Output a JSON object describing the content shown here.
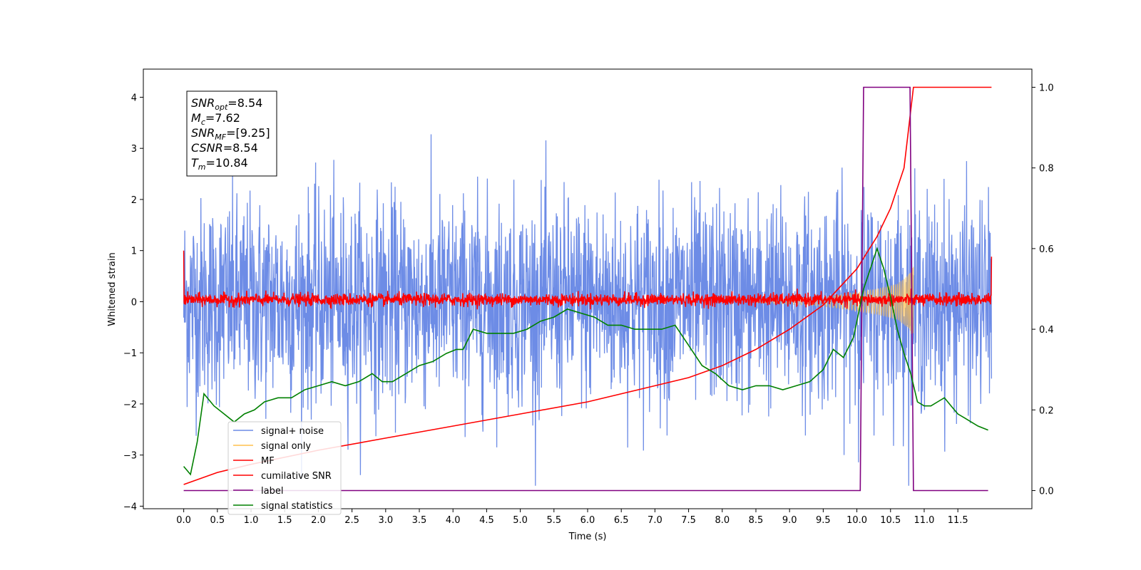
{
  "chart_data": {
    "type": "line",
    "xlabel": "Time (s)",
    "ylabel": "Whitened strain",
    "xlim": [
      -0.6,
      12.6
    ],
    "ylim": [
      -4.05,
      4.55
    ],
    "y2lim": [
      -0.045,
      1.045
    ],
    "grid": false,
    "legend_position": "lower-left",
    "x_ticks": [
      0.0,
      0.5,
      1.0,
      1.5,
      2.0,
      2.5,
      3.0,
      3.5,
      4.0,
      4.5,
      5.0,
      5.5,
      6.0,
      6.5,
      7.0,
      7.5,
      8.0,
      8.5,
      9.0,
      9.5,
      10.0,
      10.5,
      11.0,
      11.5
    ],
    "x_tick_labels": [
      "0.0",
      "0.5",
      "1.0",
      "1.5",
      "2.0",
      "2.5",
      "3.0",
      "3.5",
      "4.0",
      "4.5",
      "5.0",
      "5.5",
      "6.0",
      "6.5",
      "7.0",
      "7.5",
      "8.0",
      "8.5",
      "9.0",
      "9.5",
      "10.0",
      "10.5",
      "11.0",
      "11.5"
    ],
    "y_ticks": [
      -4,
      -3,
      -2,
      -1,
      0,
      1,
      2,
      3,
      4
    ],
    "y_tick_labels": [
      "−4",
      "−3",
      "−2",
      "−1",
      "0",
      "1",
      "2",
      "3",
      "4"
    ],
    "y2_ticks": [
      0.0,
      0.2,
      0.4,
      0.6,
      0.8,
      1.0
    ],
    "y2_tick_labels": [
      "0.0",
      "0.2",
      "0.4",
      "0.6",
      "0.8",
      "1.0"
    ],
    "annotation": [
      {
        "base": "SNR",
        "sub": "opt",
        "value": "=8.54"
      },
      {
        "base": "M",
        "sub": "c",
        "value": "=7.62"
      },
      {
        "base": "SNR",
        "sub": "MF",
        "value": "=[9.25]"
      },
      {
        "base": "CSNR",
        "sub": "",
        "value": "=8.54"
      },
      {
        "base": "T",
        "sub": "m",
        "value": "=10.84"
      }
    ],
    "colors": {
      "signal_noise": "#6d8ce6",
      "signal_only": "#ffc04d",
      "mf": "#ff0000",
      "cumulative_snr": "#ff0000",
      "label": "#800080",
      "signal_statistics": "#008000"
    },
    "series": [
      {
        "name": "signal+ noise",
        "axis": "left",
        "kind": "noise",
        "x_range": [
          0.0,
          12.0
        ],
        "y_min": -3.6,
        "y_max": 4.15,
        "typical_amplitude": 1.0
      },
      {
        "name": "signal only",
        "axis": "left",
        "kind": "chirp",
        "x": [
          8.5,
          9.0,
          9.5,
          10.0,
          10.3,
          10.6,
          10.75,
          10.84
        ],
        "envelope": [
          0.02,
          0.05,
          0.09,
          0.18,
          0.25,
          0.35,
          0.5,
          0.7
        ]
      },
      {
        "name": "MF",
        "axis": "left",
        "kind": "noise",
        "x_range": [
          0.0,
          12.0
        ],
        "y_min": -0.15,
        "y_max": 0.33,
        "edge_values": [
          1.0,
          0.88
        ]
      },
      {
        "name": "cumilative SNR",
        "axis": "right",
        "x": [
          0.0,
          0.5,
          1.0,
          2.0,
          3.0,
          4.0,
          5.0,
          6.0,
          7.0,
          7.5,
          8.0,
          8.5,
          9.0,
          9.5,
          10.0,
          10.3,
          10.5,
          10.7,
          10.84,
          11.0,
          11.5,
          12.0
        ],
        "values": [
          0.015,
          0.045,
          0.065,
          0.1,
          0.13,
          0.16,
          0.19,
          0.22,
          0.26,
          0.28,
          0.31,
          0.35,
          0.4,
          0.46,
          0.55,
          0.63,
          0.7,
          0.8,
          1.0,
          1.0,
          1.0,
          1.0
        ]
      },
      {
        "name": "label",
        "axis": "right",
        "x": [
          0.0,
          10.05,
          10.1,
          10.79,
          10.84,
          11.95
        ],
        "values": [
          0.0,
          0.0,
          1.0,
          1.0,
          0.0,
          0.0
        ]
      },
      {
        "name": "signal statistics",
        "axis": "right",
        "x": [
          0.0,
          0.1,
          0.2,
          0.3,
          0.45,
          0.6,
          0.75,
          0.9,
          1.05,
          1.2,
          1.4,
          1.6,
          1.8,
          2.0,
          2.2,
          2.4,
          2.6,
          2.8,
          2.95,
          3.1,
          3.3,
          3.5,
          3.7,
          3.9,
          4.05,
          4.15,
          4.3,
          4.5,
          4.7,
          4.9,
          5.1,
          5.3,
          5.5,
          5.7,
          5.9,
          6.1,
          6.3,
          6.5,
          6.7,
          6.9,
          7.1,
          7.3,
          7.5,
          7.7,
          7.9,
          8.1,
          8.3,
          8.5,
          8.7,
          8.9,
          9.1,
          9.3,
          9.5,
          9.65,
          9.8,
          9.95,
          10.1,
          10.2,
          10.3,
          10.4,
          10.5,
          10.6,
          10.7,
          10.8,
          10.9,
          11.0,
          11.1,
          11.2,
          11.3,
          11.4,
          11.5,
          11.6,
          11.7,
          11.8,
          11.95
        ],
        "values": [
          0.06,
          0.04,
          0.12,
          0.24,
          0.21,
          0.19,
          0.17,
          0.19,
          0.2,
          0.22,
          0.23,
          0.23,
          0.25,
          0.26,
          0.27,
          0.26,
          0.27,
          0.29,
          0.27,
          0.27,
          0.29,
          0.31,
          0.32,
          0.34,
          0.35,
          0.35,
          0.4,
          0.39,
          0.39,
          0.39,
          0.4,
          0.42,
          0.43,
          0.45,
          0.44,
          0.43,
          0.41,
          0.41,
          0.4,
          0.4,
          0.4,
          0.41,
          0.36,
          0.31,
          0.29,
          0.26,
          0.25,
          0.26,
          0.26,
          0.25,
          0.26,
          0.27,
          0.3,
          0.35,
          0.33,
          0.38,
          0.5,
          0.55,
          0.6,
          0.55,
          0.48,
          0.4,
          0.34,
          0.29,
          0.22,
          0.21,
          0.21,
          0.22,
          0.23,
          0.21,
          0.19,
          0.18,
          0.17,
          0.16,
          0.15
        ]
      }
    ]
  }
}
